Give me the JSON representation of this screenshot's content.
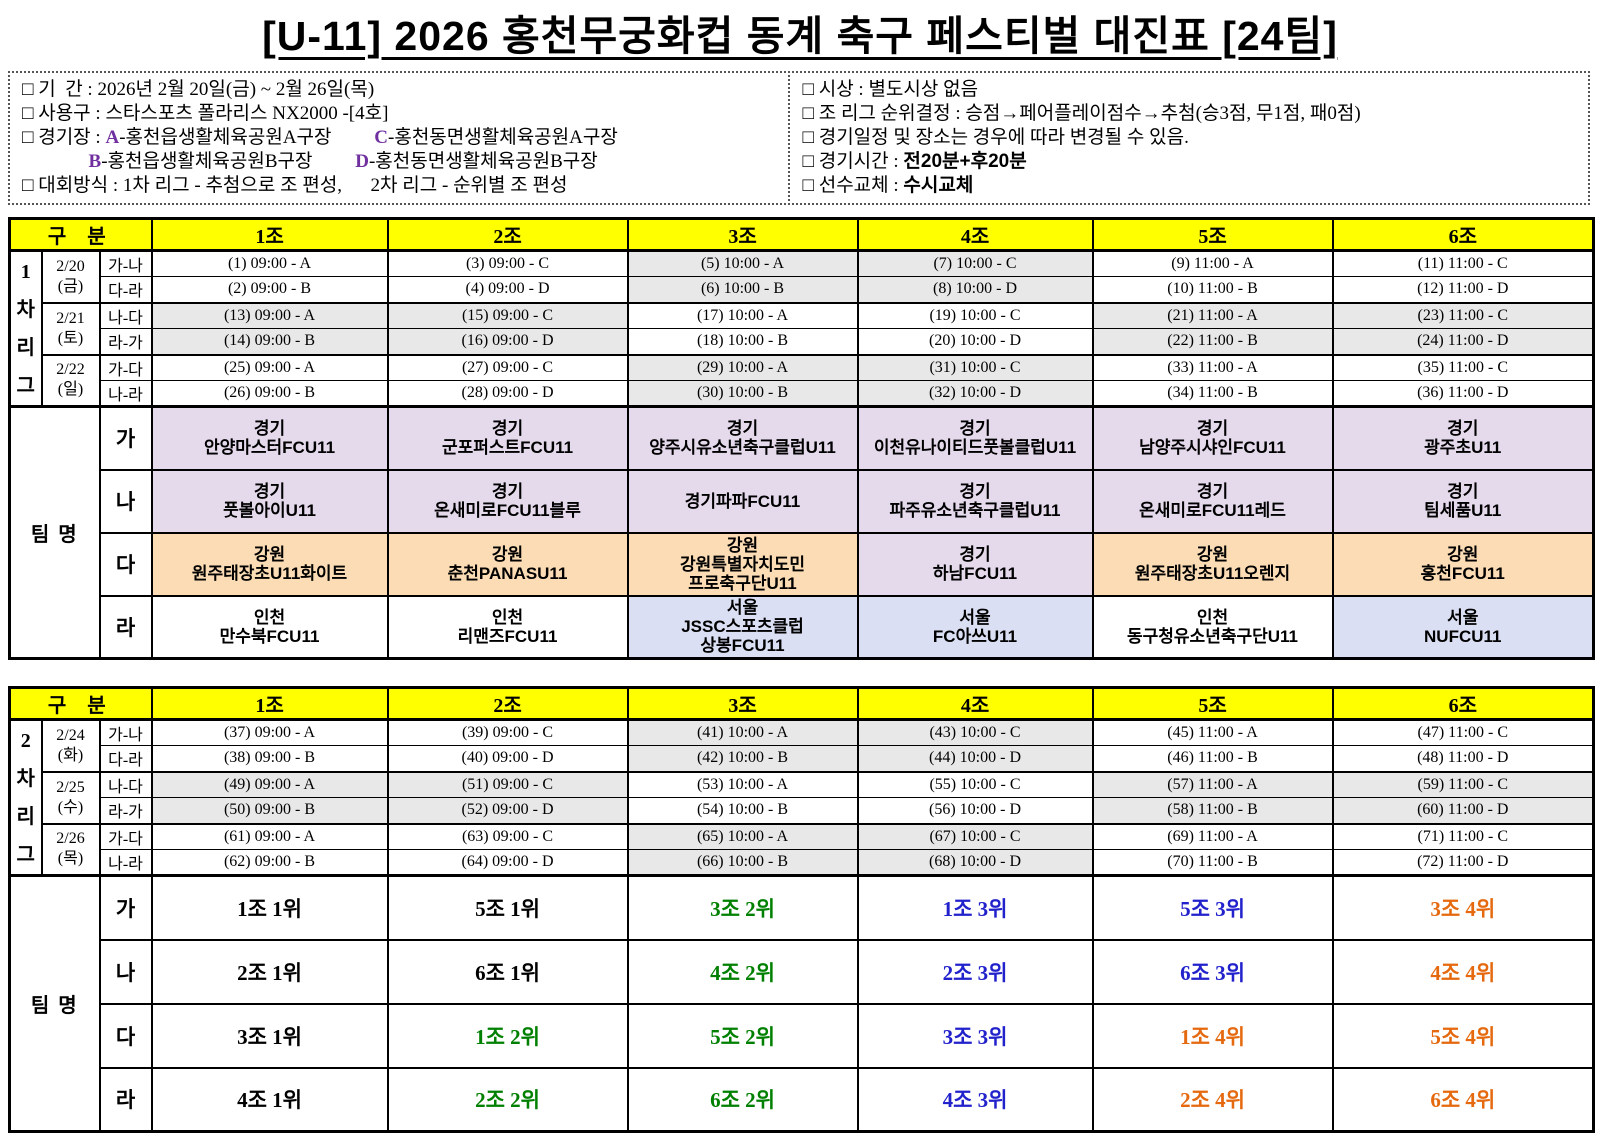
{
  "title": "[U-11] 2026 홍천무궁화컵 동계 축구 페스티벌 대진표 [24팀]",
  "colors": {
    "header_bg": "#FFFF00",
    "shade": "#E8E8E8",
    "venue_letter": "#7030A0",
    "team": {
      "purple": "#E5D9EC",
      "orange": "#FBDCB4",
      "blue": "#DADFF3",
      "white": "#FFFFFF"
    },
    "rank": {
      "black": "#000000",
      "green": "#008000",
      "blue": "#2222CC",
      "orange": "#E5690F"
    }
  },
  "info": {
    "left_lines": [
      [
        {
          "t": "□ 기  간 : 2026년 2월 20일(금) ~ 2월 26일(목)",
          "s": "n"
        }
      ],
      [
        {
          "t": "□ 사용구 : 스타스포츠 폴라리스 NX2000 -[4호]",
          "s": "n"
        }
      ],
      [
        {
          "t": "□ 경기장 : ",
          "s": "n"
        },
        {
          "t": "A",
          "s": "p"
        },
        {
          "t": "-홍천읍생활체육공원A구장",
          "s": "n"
        },
        {
          "t": "         ",
          "s": "n"
        },
        {
          "t": "C",
          "s": "p"
        },
        {
          "t": "-홍천동면생활체육공원A구장",
          "s": "n"
        }
      ],
      [
        {
          "t": "              ",
          "s": "n"
        },
        {
          "t": "B",
          "s": "p"
        },
        {
          "t": "-홍천읍생활체육공원B구장",
          "s": "n"
        },
        {
          "t": "         ",
          "s": "n"
        },
        {
          "t": "D",
          "s": "p"
        },
        {
          "t": "-홍천동면생활체육공원B구장",
          "s": "n"
        }
      ],
      [
        {
          "t": "□ 대회방식 : 1차 리그 - 추첨으로 조 편성,      2차 리그 - 순위별 조 편성",
          "s": "n"
        }
      ]
    ],
    "right_lines": [
      [
        {
          "t": "□ 시상 : 별도시상 없음",
          "s": "n"
        }
      ],
      [
        {
          "t": "□ 조 리그 순위결정 : 승점→페어플레이점수→추첨(승3점, 무1점, 패0점)",
          "s": "n"
        }
      ],
      [
        {
          "t": "□ 경기일정 및 장소는 경우에 따라 변경될 수 있음.",
          "s": "n"
        }
      ],
      [
        {
          "t": "□ 경기시간 : ",
          "s": "n"
        },
        {
          "t": "전20분+후20분",
          "s": "b"
        }
      ],
      [
        {
          "t": "□ 선수교체 : ",
          "s": "n"
        },
        {
          "t": "수시교체",
          "s": "b"
        }
      ]
    ]
  },
  "league1": {
    "corner_label": "구  분",
    "groups": [
      "1조",
      "2조",
      "3조",
      "4조",
      "5조",
      "6조"
    ],
    "side_chars": "1차리그",
    "schedule": [
      {
        "date": "2/20",
        "dow": "(금)",
        "pair": "가-나",
        "cells": [
          "(1) 09:00 - A",
          "(3) 09:00 - C",
          "(5) 10:00 - A",
          "(7) 10:00 - C",
          "(9) 11:00 - A",
          "(11) 11:00 - C"
        ],
        "shaded": [
          2,
          3
        ]
      },
      {
        "pair": "다-라",
        "cells": [
          "(2) 09:00 - B",
          "(4) 09:00 - D",
          "(6) 10:00 - B",
          "(8) 10:00 - D",
          "(10) 11:00 - B",
          "(12) 11:00 - D"
        ],
        "shaded": [
          2,
          3
        ]
      },
      {
        "date": "2/21",
        "dow": "(토)",
        "pair": "나-다",
        "cells": [
          "(13) 09:00 - A",
          "(15) 09:00 - C",
          "(17) 10:00 - A",
          "(19) 10:00 - C",
          "(21) 11:00 - A",
          "(23) 11:00 - C"
        ],
        "shaded": [
          0,
          1,
          4,
          5
        ]
      },
      {
        "pair": "라-가",
        "cells": [
          "(14) 09:00 - B",
          "(16) 09:00 - D",
          "(18) 10:00 - B",
          "(20) 10:00 - D",
          "(22) 11:00 - B",
          "(24) 11:00 - D"
        ],
        "shaded": [
          0,
          1,
          4,
          5
        ]
      },
      {
        "date": "2/22",
        "dow": "(일)",
        "pair": "가-다",
        "cells": [
          "(25) 09:00 - A",
          "(27) 09:00 - C",
          "(29) 10:00 - A",
          "(31) 10:00 - C",
          "(33) 11:00 - A",
          "(35) 11:00 - C"
        ],
        "shaded": [
          2,
          3
        ]
      },
      {
        "pair": "나-라",
        "cells": [
          "(26) 09:00 - B",
          "(28) 09:00 - D",
          "(30) 10:00 - B",
          "(32) 10:00 - D",
          "(34) 11:00 - B",
          "(36) 11:00 - D"
        ],
        "shaded": [
          2,
          3
        ]
      }
    ],
    "bottom_label": "팀  명",
    "bottom_type": "teams",
    "bottom_rows": [
      {
        "label": "가",
        "cells": [
          {
            "lines": [
              "경기",
              "안양마스터FCU11"
            ],
            "bg": "purple"
          },
          {
            "lines": [
              "경기",
              "군포퍼스트FCU11"
            ],
            "bg": "purple"
          },
          {
            "lines": [
              "경기",
              "양주시유소년축구클럽U11"
            ],
            "bg": "purple"
          },
          {
            "lines": [
              "경기",
              "이천유나이티드풋볼클럽U11"
            ],
            "bg": "purple"
          },
          {
            "lines": [
              "경기",
              "남양주시샤인FCU11"
            ],
            "bg": "purple"
          },
          {
            "lines": [
              "경기",
              "광주초U11"
            ],
            "bg": "purple"
          }
        ]
      },
      {
        "label": "나",
        "cells": [
          {
            "lines": [
              "경기",
              "풋볼아이U11"
            ],
            "bg": "purple"
          },
          {
            "lines": [
              "경기",
              "온새미로FCU11블루"
            ],
            "bg": "purple"
          },
          {
            "lines": [
              "경기파파FCU11"
            ],
            "bg": "purple"
          },
          {
            "lines": [
              "경기",
              "파주유소년축구클럽U11"
            ],
            "bg": "purple"
          },
          {
            "lines": [
              "경기",
              "온새미로FCU11레드"
            ],
            "bg": "purple"
          },
          {
            "lines": [
              "경기",
              "팀세품U11"
            ],
            "bg": "purple"
          }
        ]
      },
      {
        "label": "다",
        "cells": [
          {
            "lines": [
              "강원",
              "원주태장초U11화이트"
            ],
            "bg": "orange"
          },
          {
            "lines": [
              "강원",
              "춘천PANASU11"
            ],
            "bg": "orange"
          },
          {
            "lines": [
              "강원",
              "강원특별자치도민",
              "프로축구단U11"
            ],
            "bg": "orange"
          },
          {
            "lines": [
              "경기",
              "하남FCU11"
            ],
            "bg": "purple"
          },
          {
            "lines": [
              "강원",
              "원주태장초U11오렌지"
            ],
            "bg": "orange"
          },
          {
            "lines": [
              "강원",
              "홍천FCU11"
            ],
            "bg": "orange"
          }
        ]
      },
      {
        "label": "라",
        "cells": [
          {
            "lines": [
              "인천",
              "만수북FCU11"
            ],
            "bg": "white"
          },
          {
            "lines": [
              "인천",
              "리맨즈FCU11"
            ],
            "bg": "white"
          },
          {
            "lines": [
              "서울",
              "JSSC스포츠클럽",
              "상봉FCU11"
            ],
            "bg": "blue"
          },
          {
            "lines": [
              "서울",
              "FC아쓰U11"
            ],
            "bg": "blue"
          },
          {
            "lines": [
              "인천",
              "동구청유소년축구단U11"
            ],
            "bg": "white"
          },
          {
            "lines": [
              "서울",
              "NUFCU11"
            ],
            "bg": "blue"
          }
        ]
      }
    ]
  },
  "league2": {
    "corner_label": "구  분",
    "groups": [
      "1조",
      "2조",
      "3조",
      "4조",
      "5조",
      "6조"
    ],
    "side_chars": "2차리그",
    "schedule": [
      {
        "date": "2/24",
        "dow": "(화)",
        "pair": "가-나",
        "cells": [
          "(37) 09:00 - A",
          "(39) 09:00 - C",
          "(41) 10:00 - A",
          "(43) 10:00 - C",
          "(45) 11:00 - A",
          "(47) 11:00 - C"
        ],
        "shaded": [
          2,
          3
        ]
      },
      {
        "pair": "다-라",
        "cells": [
          "(38) 09:00 - B",
          "(40) 09:00 - D",
          "(42) 10:00 - B",
          "(44) 10:00 - D",
          "(46) 11:00 - B",
          "(48) 11:00 - D"
        ],
        "shaded": [
          2,
          3
        ]
      },
      {
        "date": "2/25",
        "dow": "(수)",
        "pair": "나-다",
        "cells": [
          "(49) 09:00 - A",
          "(51) 09:00 - C",
          "(53) 10:00 - A",
          "(55) 10:00 - C",
          "(57) 11:00 - A",
          "(59) 11:00 - C"
        ],
        "shaded": [
          0,
          1,
          4,
          5
        ]
      },
      {
        "pair": "라-가",
        "cells": [
          "(50) 09:00 - B",
          "(52) 09:00 - D",
          "(54) 10:00 - B",
          "(56) 10:00 - D",
          "(58) 11:00 - B",
          "(60) 11:00 - D"
        ],
        "shaded": [
          0,
          1,
          4,
          5
        ]
      },
      {
        "date": "2/26",
        "dow": "(목)",
        "pair": "가-다",
        "cells": [
          "(61) 09:00 - A",
          "(63) 09:00 - C",
          "(65) 10:00 - A",
          "(67) 10:00 - C",
          "(69) 11:00 - A",
          "(71) 11:00 - C"
        ],
        "shaded": [
          2,
          3
        ]
      },
      {
        "pair": "나-라",
        "cells": [
          "(62) 09:00 - B",
          "(64) 09:00 - D",
          "(66) 10:00 - B",
          "(68) 10:00 - D",
          "(70) 11:00 - B",
          "(72) 11:00 - D"
        ],
        "shaded": [
          2,
          3
        ]
      }
    ],
    "bottom_label": "팀  명",
    "bottom_type": "ranks",
    "bottom_rows": [
      {
        "label": "가",
        "cells": [
          {
            "text": "1조 1위",
            "color": "black"
          },
          {
            "text": "5조 1위",
            "color": "black"
          },
          {
            "text": "3조 2위",
            "color": "green"
          },
          {
            "text": "1조 3위",
            "color": "blue"
          },
          {
            "text": "5조 3위",
            "color": "blue"
          },
          {
            "text": "3조 4위",
            "color": "orange"
          }
        ]
      },
      {
        "label": "나",
        "cells": [
          {
            "text": "2조 1위",
            "color": "black"
          },
          {
            "text": "6조 1위",
            "color": "black"
          },
          {
            "text": "4조 2위",
            "color": "green"
          },
          {
            "text": "2조 3위",
            "color": "blue"
          },
          {
            "text": "6조 3위",
            "color": "blue"
          },
          {
            "text": "4조 4위",
            "color": "orange"
          }
        ]
      },
      {
        "label": "다",
        "cells": [
          {
            "text": "3조 1위",
            "color": "black"
          },
          {
            "text": "1조 2위",
            "color": "green"
          },
          {
            "text": "5조 2위",
            "color": "green"
          },
          {
            "text": "3조 3위",
            "color": "blue"
          },
          {
            "text": "1조 4위",
            "color": "orange"
          },
          {
            "text": "5조 4위",
            "color": "orange"
          }
        ]
      },
      {
        "label": "라",
        "cells": [
          {
            "text": "4조 1위",
            "color": "black"
          },
          {
            "text": "2조 2위",
            "color": "green"
          },
          {
            "text": "6조 2위",
            "color": "green"
          },
          {
            "text": "4조 3위",
            "color": "blue"
          },
          {
            "text": "2조 4위",
            "color": "orange"
          },
          {
            "text": "6조 4위",
            "color": "orange"
          }
        ]
      }
    ]
  }
}
